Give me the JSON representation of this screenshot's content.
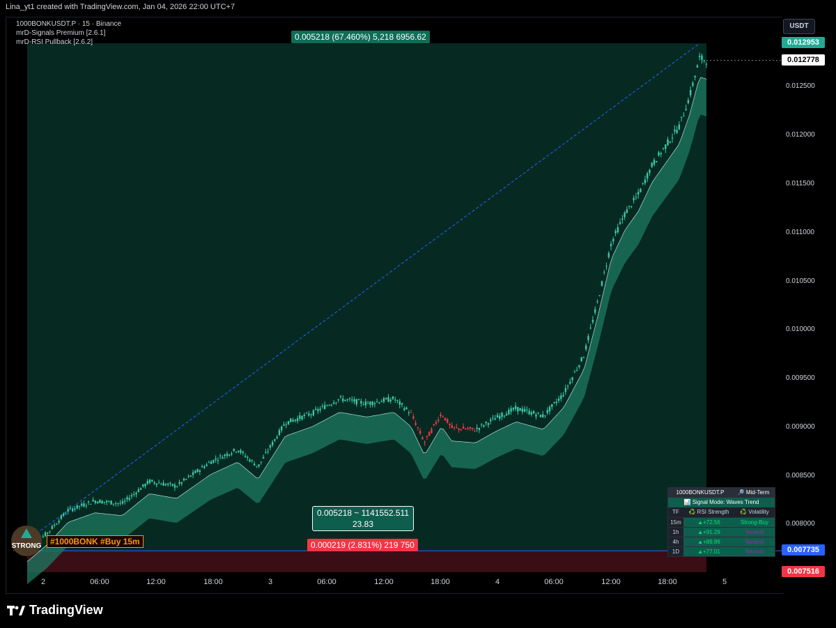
{
  "header": {
    "attribution": "Lina_yt1 created with TradingView.com, Jan 04, 2026 22:00 UTC+7"
  },
  "legend": {
    "symbol_line": "1000BONKUSDT.P · 15 · Binance",
    "indicator1": "mrD-Signals Premium [2.6.1]",
    "indicator2": "mrD-RSI Pullback [2.6.2]"
  },
  "axis": {
    "unit": "USDT"
  },
  "colors": {
    "accent_green": "#22ab94",
    "accent_red": "#f23645",
    "zone_green": "#062a22",
    "zone_red": "#3a0e14",
    "entry_line": "#2962ff",
    "buy_tag": "#ff9800"
  },
  "chart_data": {
    "type": "candlestick",
    "symbol": "1000BONKUSDT.P",
    "interval": "15",
    "exchange": "Binance",
    "y_ticks": [
      0.0125,
      0.012,
      0.0115,
      0.011,
      0.0105,
      0.01,
      0.0095,
      0.009,
      0.0085,
      0.008
    ],
    "y_tick_labels": [
      "0.012500",
      "0.012000",
      "0.011500",
      "0.011000",
      "0.010500",
      "0.010000",
      "0.009500",
      "0.009000",
      "0.008500",
      "0.008000"
    ],
    "ylim": [
      0.0073,
      0.01322
    ],
    "x_ticks": [
      "2",
      "06:00",
      "12:00",
      "18:00",
      "3",
      "06:00",
      "12:00",
      "18:00",
      "4",
      "06:00",
      "12:00",
      "18:00",
      "5"
    ],
    "price_path": [
      [
        0,
        0.00774
      ],
      [
        0.03,
        0.00792
      ],
      [
        0.06,
        0.00815
      ],
      [
        0.1,
        0.00825
      ],
      [
        0.14,
        0.00822
      ],
      [
        0.18,
        0.00845
      ],
      [
        0.22,
        0.0084
      ],
      [
        0.27,
        0.00865
      ],
      [
        0.31,
        0.00878
      ],
      [
        0.34,
        0.0086
      ],
      [
        0.38,
        0.00905
      ],
      [
        0.42,
        0.00915
      ],
      [
        0.46,
        0.0093
      ],
      [
        0.5,
        0.00925
      ],
      [
        0.54,
        0.0093
      ],
      [
        0.565,
        0.00915
      ],
      [
        0.585,
        0.00885
      ],
      [
        0.61,
        0.00915
      ],
      [
        0.625,
        0.009
      ],
      [
        0.66,
        0.00898
      ],
      [
        0.69,
        0.0091
      ],
      [
        0.72,
        0.0092
      ],
      [
        0.76,
        0.00912
      ],
      [
        0.79,
        0.00935
      ],
      [
        0.82,
        0.00975
      ],
      [
        0.84,
        0.0103
      ],
      [
        0.86,
        0.0109
      ],
      [
        0.88,
        0.0112
      ],
      [
        0.9,
        0.0114
      ],
      [
        0.92,
        0.0117
      ],
      [
        0.94,
        0.0119
      ],
      [
        0.96,
        0.0121
      ],
      [
        0.975,
        0.0124
      ],
      [
        0.99,
        0.0128
      ],
      [
        1.0,
        0.012778
      ]
    ],
    "price_tags": [
      {
        "label": "0.012953",
        "value": 0.012953,
        "bg": "#22ab94",
        "fg": "#ffffff"
      },
      {
        "label": "0.012778",
        "value": 0.012778,
        "bg": "#ffffff",
        "fg": "#000000"
      },
      {
        "label": "0.007735",
        "value": 0.007735,
        "bg": "#2962ff",
        "fg": "#ffffff"
      },
      {
        "label": "0.007516",
        "value": 0.007516,
        "bg": "#f23645",
        "fg": "#ffffff"
      }
    ],
    "position": {
      "entry": 0.007735,
      "take_profit": 0.012953,
      "stop_loss": 0.007516,
      "tp_label": "0.005218 (67.460%) 5,218 6956.62",
      "range_label_1": "0.005218 ~ 1141552.511",
      "range_label_2": "23.83",
      "sl_label": "0.000219 (2.831%) 219 750"
    },
    "annotations": {
      "buy_tag": "#1000BONK #Buy 15m",
      "badge": "STRONG"
    }
  },
  "signal_table": {
    "title": "1000BONKUSDT.P",
    "term": "🔎 Mid-Term",
    "mode": "📊 Signal Mode: Waves Trend",
    "headers": [
      "TF",
      "♻️ RSI Strength",
      "♻️ Volatility"
    ],
    "rows": [
      {
        "tf": "15m",
        "rsi": "▲+72.56",
        "vol": "Strong-Buy",
        "vol_color": "#00e676"
      },
      {
        "tf": "1h",
        "rsi": "▲+91.29",
        "vol": "Neutral",
        "vol_color": "#9c27b0"
      },
      {
        "tf": "4h",
        "rsi": "▲+89.86",
        "vol": "Neutral",
        "vol_color": "#9c27b0"
      },
      {
        "tf": "1D",
        "rsi": "▲+77.01",
        "vol": "Neutral",
        "vol_color": "#9c27b0"
      }
    ]
  },
  "footer": {
    "brand": "TradingView"
  }
}
